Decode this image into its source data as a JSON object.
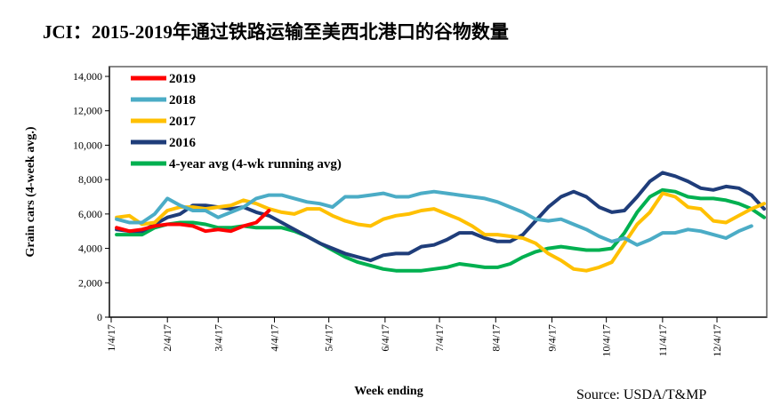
{
  "chart_data": {
    "type": "line",
    "title": "JCI：2015-2019年通过铁路运输至美西北港口的谷物数量",
    "xlabel": "Week ending",
    "ylabel": "Grain cars (4-week avg.)",
    "source": "Source: USDA/T&MP",
    "ylim": [
      0,
      14000
    ],
    "yticks": [
      "0",
      "2,000",
      "4,000",
      "6,000",
      "8,000",
      "10,000",
      "12,000",
      "14,000"
    ],
    "xticks": [
      "1/4/17",
      "2/4/17",
      "3/4/17",
      "4/4/17",
      "5/4/17",
      "6/4/17",
      "7/4/17",
      "8/4/17",
      "9/4/17",
      "10/4/17",
      "11/4/17",
      "12/4/17"
    ],
    "x_start": "1/7/17",
    "x_interval": "weekly",
    "grid": false,
    "legend_position": "top-left",
    "series": [
      {
        "name": "2019",
        "color": "#ff0000",
        "values": [
          5200,
          5000,
          5100,
          5300,
          5400,
          5400,
          5300,
          5000,
          5100,
          5000,
          5300,
          5500,
          6200,
          null,
          null,
          null,
          null,
          null,
          null,
          null,
          null,
          null,
          null,
          null,
          null,
          null,
          null,
          null,
          null,
          null,
          null,
          null,
          null,
          null,
          null,
          null,
          null,
          null,
          null,
          null,
          null,
          null,
          null,
          null,
          null,
          null,
          null,
          null,
          null,
          null,
          null,
          null
        ]
      },
      {
        "name": "2018",
        "color": "#4bacc6",
        "values": [
          5700,
          5500,
          5500,
          6000,
          6900,
          6500,
          6200,
          6200,
          5800,
          6100,
          6400,
          6900,
          7100,
          7100,
          6900,
          6700,
          6600,
          6400,
          7000,
          7000,
          7100,
          7200,
          7000,
          7000,
          7200,
          7300,
          7200,
          7100,
          7000,
          6900,
          6700,
          6400,
          6100,
          5700,
          5600,
          5700,
          5400,
          5100,
          4700,
          4400,
          4600,
          4200,
          4500,
          4900,
          4900,
          5100,
          5000,
          4800,
          4600,
          5000,
          5300,
          null
        ]
      },
      {
        "name": "2017",
        "color": "#ffc000",
        "values": [
          5800,
          5900,
          5400,
          5500,
          6200,
          6400,
          6400,
          6300,
          6400,
          6500,
          6800,
          6600,
          6300,
          6100,
          6000,
          6300,
          6300,
          5900,
          5600,
          5400,
          5300,
          5700,
          5900,
          6000,
          6200,
          6300,
          6000,
          5700,
          5300,
          4800,
          4800,
          4700,
          4600,
          4300,
          3700,
          3300,
          2800,
          2700,
          2900,
          3200,
          4300,
          5400,
          6100,
          7200,
          7000,
          6400,
          6300,
          5600,
          5500,
          5900,
          6300,
          6600
        ]
      },
      {
        "name": "2016",
        "color": "#1f3d7a",
        "values": [
          5100,
          5000,
          5000,
          5400,
          5800,
          6000,
          6500,
          6500,
          6400,
          6300,
          6400,
          6100,
          5900,
          5500,
          5100,
          4700,
          4300,
          4000,
          3700,
          3500,
          3300,
          3600,
          3700,
          3700,
          4100,
          4200,
          4500,
          4900,
          4900,
          4600,
          4400,
          4400,
          4800,
          5600,
          6400,
          7000,
          7300,
          7000,
          6400,
          6100,
          6200,
          7000,
          7900,
          8400,
          8200,
          7900,
          7500,
          7400,
          7600,
          7500,
          7100,
          6300
        ]
      },
      {
        "name": "4-year avg (4-wk running avg)",
        "color": "#00b050",
        "values": [
          4800,
          4800,
          4800,
          5200,
          5400,
          5500,
          5500,
          5400,
          5200,
          5200,
          5300,
          5200,
          5200,
          5200,
          5000,
          4700,
          4300,
          3900,
          3500,
          3200,
          3000,
          2800,
          2700,
          2700,
          2700,
          2800,
          2900,
          3100,
          3000,
          2900,
          2900,
          3100,
          3500,
          3800,
          4000,
          4100,
          4000,
          3900,
          3900,
          4000,
          4900,
          6100,
          7000,
          7400,
          7300,
          7000,
          6900,
          6900,
          6800,
          6600,
          6300,
          5800
        ]
      }
    ]
  }
}
